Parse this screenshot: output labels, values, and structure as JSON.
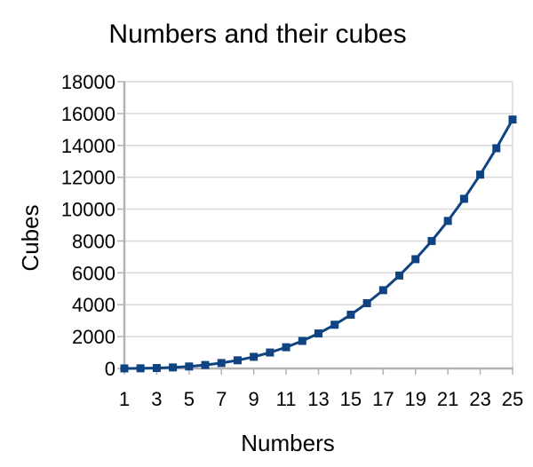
{
  "chart_data": {
    "type": "line",
    "title": "Numbers and their cubes",
    "xlabel": "Numbers",
    "ylabel": "Cubes",
    "x": [
      1,
      2,
      3,
      4,
      5,
      6,
      7,
      8,
      9,
      10,
      11,
      12,
      13,
      14,
      15,
      16,
      17,
      18,
      19,
      20,
      21,
      22,
      23,
      24,
      25
    ],
    "y": [
      1,
      8,
      27,
      64,
      125,
      216,
      343,
      512,
      729,
      1000,
      1331,
      1728,
      2197,
      2744,
      3375,
      4096,
      4913,
      5832,
      6859,
      8000,
      9261,
      10648,
      12167,
      13824,
      15625
    ],
    "x_tick_labels": [
      "1",
      "3",
      "5",
      "7",
      "9",
      "11",
      "13",
      "15",
      "17",
      "19",
      "21",
      "23",
      "25"
    ],
    "y_ticks": [
      0,
      2000,
      4000,
      6000,
      8000,
      10000,
      12000,
      14000,
      16000,
      18000
    ],
    "ylim": [
      0,
      18000
    ],
    "grid": "horizontal",
    "legend": "none",
    "marker": "square",
    "colors": {
      "series": "#0f4381",
      "grid": "#d9d9d9",
      "axis": "#b3b3b3",
      "text": "#000000",
      "background": "#ffffff"
    }
  }
}
